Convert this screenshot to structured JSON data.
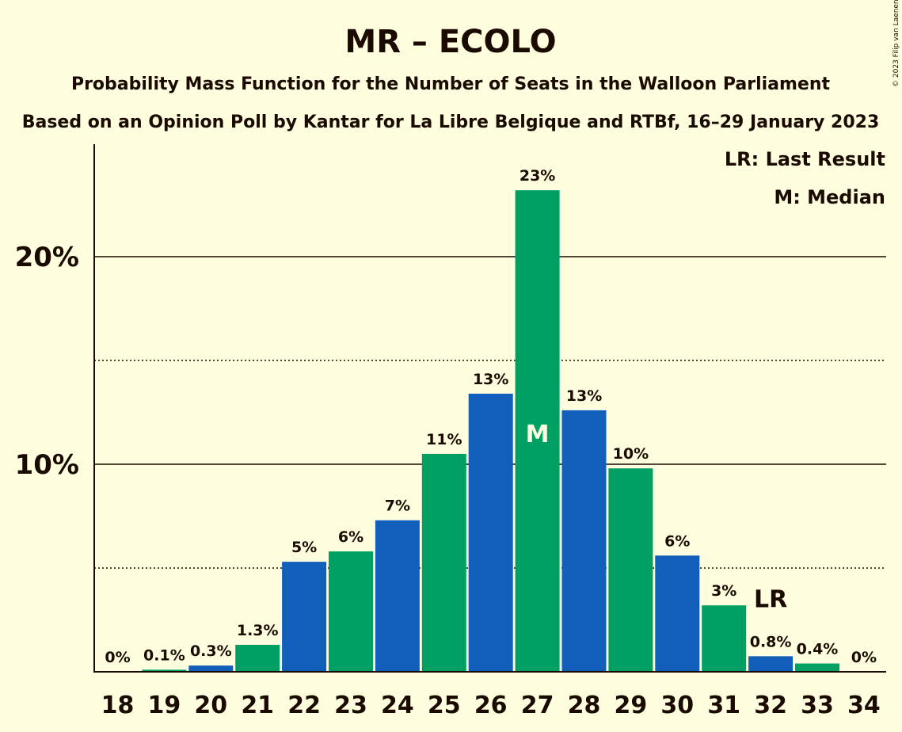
{
  "chart_data": {
    "type": "bar",
    "title": "MR – ECOLO",
    "subtitle_line1": "Probability Mass Function for the Number of Seats in the Walloon Parliament",
    "subtitle_line2": "Based on an Opinion Poll by Kantar for La Libre Belgique and RTBf, 16–29 January 2023",
    "copyright": "© 2023 Filip van Laenen",
    "legend": [
      "LR: Last Result",
      "M: Median"
    ],
    "ylim": [
      0,
      25
    ],
    "y_major_ticks": [
      {
        "value": 10,
        "label": "10%"
      },
      {
        "value": 20,
        "label": "20%"
      }
    ],
    "y_minor_gridlines": [
      5,
      15
    ],
    "categories": [
      "18",
      "19",
      "20",
      "21",
      "22",
      "23",
      "24",
      "25",
      "26",
      "27",
      "28",
      "29",
      "30",
      "31",
      "32",
      "33",
      "34"
    ],
    "values": [
      0,
      0.1,
      0.3,
      1.3,
      5.3,
      5.8,
      7.3,
      10.5,
      13.4,
      23.2,
      12.6,
      9.8,
      5.6,
      3.2,
      0.75,
      0.4,
      0
    ],
    "data_labels": [
      "0%",
      "0.1%",
      "0.3%",
      "1.3%",
      "5%",
      "6%",
      "7%",
      "11%",
      "13%",
      "23%",
      "13%",
      "10%",
      "6%",
      "3%",
      "0.8%",
      "0.4%",
      "0%"
    ],
    "colors": {
      "blue": "#115ebb",
      "green": "#00a064",
      "background": "#ffffe0",
      "text": "#1a0a00"
    },
    "bar_colors": [
      "blue",
      "green",
      "blue",
      "green",
      "blue",
      "green",
      "blue",
      "green",
      "blue",
      "green",
      "blue",
      "green",
      "blue",
      "green",
      "blue",
      "green",
      "blue"
    ],
    "median_category": "27",
    "median_marker": "M",
    "last_result_category": "32",
    "last_result_marker": "LR"
  }
}
